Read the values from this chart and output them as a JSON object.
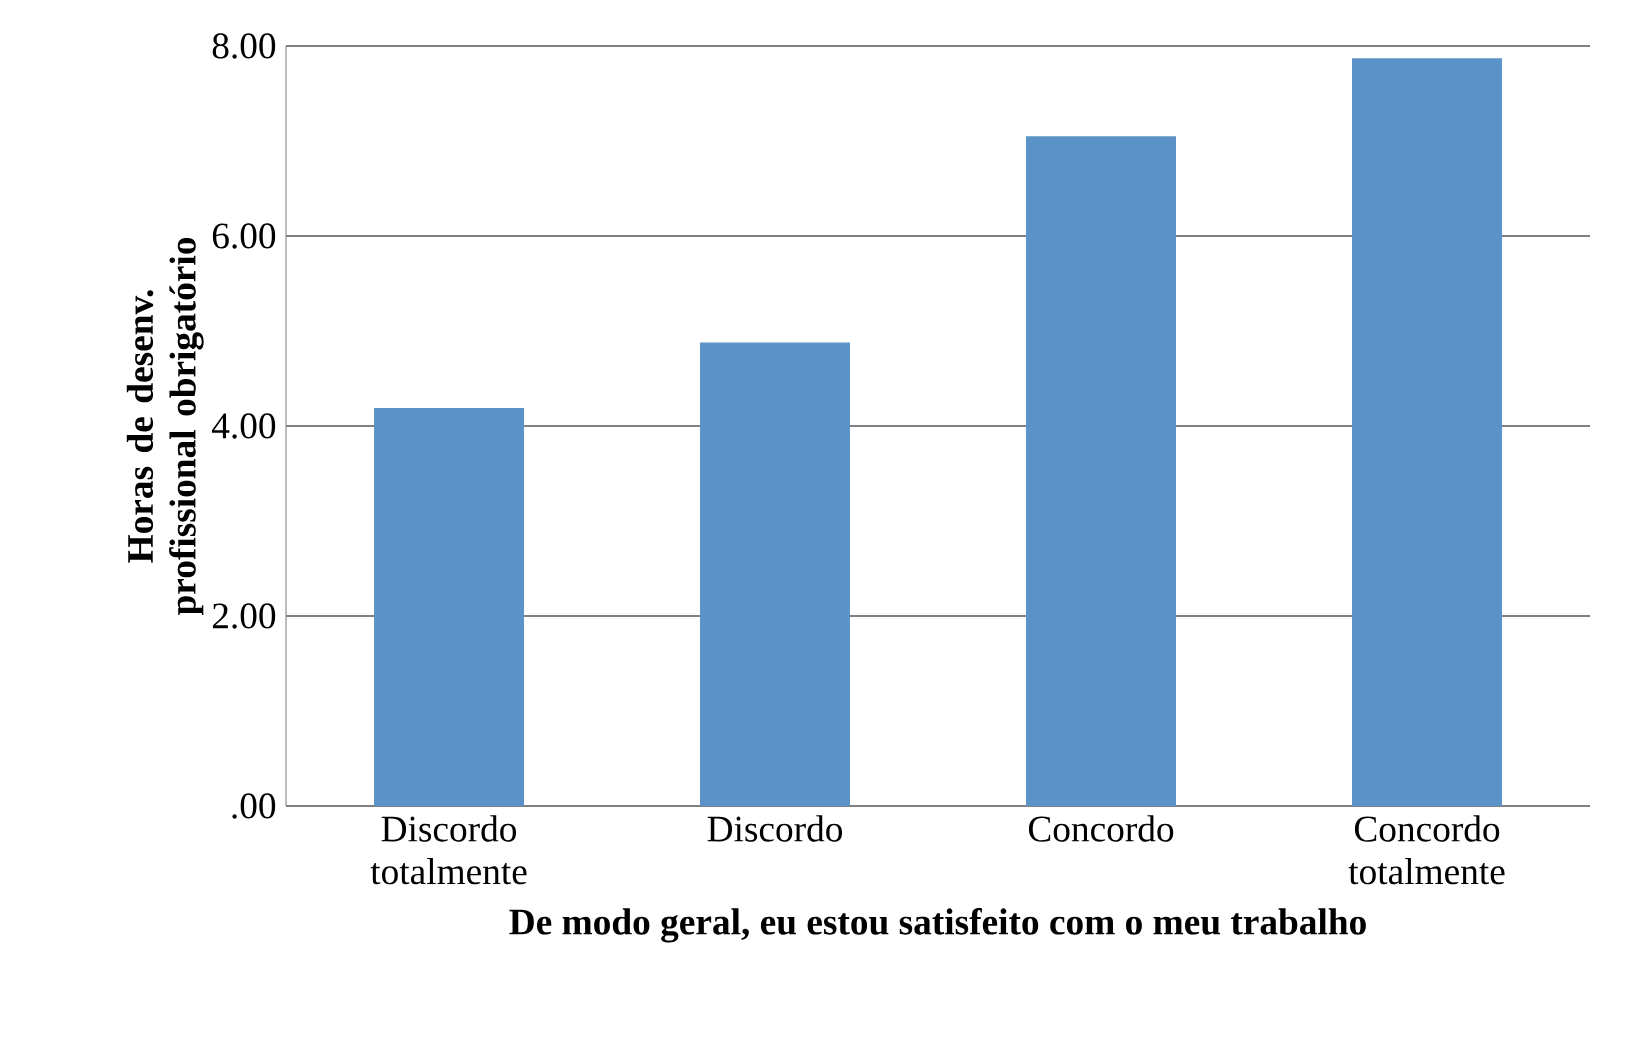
{
  "chart_data": {
    "type": "bar",
    "xlabel": "De modo geral, eu estou satisfeito com o meu trabalho",
    "ylabel": "Horas de desenv. profissional obrigatório",
    "categories": [
      "Discordo totalmente",
      "Discordo",
      "Concordo",
      "Concordo totalmente"
    ],
    "values": [
      4.19,
      4.88,
      7.05,
      7.87
    ],
    "color": "#5b92c8",
    "ylim": [
      0,
      8
    ],
    "yticks": [
      {
        "value": 0,
        "label": ".00"
      },
      {
        "value": 2,
        "label": "2.00"
      },
      {
        "value": 4,
        "label": "4.00"
      },
      {
        "value": 6,
        "label": "6.00"
      },
      {
        "value": 8,
        "label": "8.00"
      }
    ],
    "grid": "y"
  }
}
